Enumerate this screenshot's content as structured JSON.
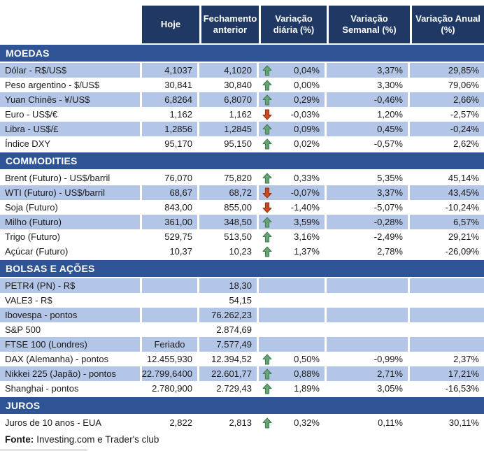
{
  "chart_data": {
    "type": "table",
    "columns": [
      "Hoje",
      "Fechamento anterior",
      "Variação diária (%)",
      "Variação Semanal (%)",
      "Variação Anual (%)"
    ],
    "sections": [
      {
        "title": "MOEDAS",
        "rows": [
          {
            "label": "Dólar - R$/US$",
            "hoje": "4,1037",
            "fechamento": "4,1020",
            "arrow": "up",
            "diaria": "0,04%",
            "semanal": "3,37%",
            "anual": "29,85%",
            "shaded": true
          },
          {
            "label": "Peso argentino - $/US$",
            "hoje": "30,841",
            "fechamento": "30,840",
            "arrow": "up",
            "diaria": "0,00%",
            "semanal": "3,30%",
            "anual": "79,06%",
            "shaded": false
          },
          {
            "label": "Yuan Chinês - ¥/US$",
            "hoje": "6,8264",
            "fechamento": "6,8070",
            "arrow": "up",
            "diaria": "0,29%",
            "semanal": "-0,46%",
            "anual": "2,66%",
            "shaded": true
          },
          {
            "label": "Euro - US$/€",
            "hoje": "1,162",
            "fechamento": "1,162",
            "arrow": "down",
            "diaria": "-0,03%",
            "semanal": "1,20%",
            "anual": "-2,57%",
            "shaded": false
          },
          {
            "label": "Libra - US$/£",
            "hoje": "1,2856",
            "fechamento": "1,2845",
            "arrow": "up",
            "diaria": "0,09%",
            "semanal": "0,45%",
            "anual": "-0,24%",
            "shaded": true
          },
          {
            "label": "Índice DXY",
            "hoje": "95,170",
            "fechamento": "95,150",
            "arrow": "up",
            "diaria": "0,02%",
            "semanal": "-0,57%",
            "anual": "2,62%",
            "shaded": false
          }
        ]
      },
      {
        "title": "COMMODITIES",
        "rows": [
          {
            "label": "Brent (Futuro) - US$/barril",
            "hoje": "76,070",
            "fechamento": "75,820",
            "arrow": "up",
            "diaria": "0,33%",
            "semanal": "5,35%",
            "anual": "45,14%",
            "shaded": false
          },
          {
            "label": "WTI (Futuro) - US$/barril",
            "hoje": "68,67",
            "fechamento": "68,72",
            "arrow": "down",
            "diaria": "-0,07%",
            "semanal": "3,37%",
            "anual": "43,45%",
            "shaded": true
          },
          {
            "label": "Soja (Futuro)",
            "hoje": "843,00",
            "fechamento": "855,00",
            "arrow": "down",
            "diaria": "-1,40%",
            "semanal": "-5,07%",
            "anual": "-10,24%",
            "shaded": false
          },
          {
            "label": "Milho (Futuro)",
            "hoje": "361,00",
            "fechamento": "348,50",
            "arrow": "up",
            "diaria": "3,59%",
            "semanal": "-0,28%",
            "anual": "6,57%",
            "shaded": true
          },
          {
            "label": "Trigo (Futuro)",
            "hoje": "529,75",
            "fechamento": "513,50",
            "arrow": "up",
            "diaria": "3,16%",
            "semanal": "-2,49%",
            "anual": "29,21%",
            "shaded": false
          },
          {
            "label": "Açúcar (Futuro)",
            "hoje": "10,37",
            "fechamento": "10,23",
            "arrow": "up",
            "diaria": "1,37%",
            "semanal": "2,78%",
            "anual": "-26,09%",
            "shaded": false
          }
        ]
      },
      {
        "title": "BOLSAS E AÇÕES",
        "rows": [
          {
            "label": "PETR4 (PN) - R$",
            "hoje": "",
            "fechamento": "18,30",
            "arrow": null,
            "diaria": "",
            "semanal": "",
            "anual": "",
            "shaded": true
          },
          {
            "label": "VALE3 - R$",
            "hoje": "",
            "fechamento": "54,15",
            "arrow": null,
            "diaria": "",
            "semanal": "",
            "anual": "",
            "shaded": false
          },
          {
            "label": "Ibovespa - pontos",
            "hoje": "",
            "fechamento": "76.262,23",
            "arrow": null,
            "diaria": "",
            "semanal": "",
            "anual": "",
            "shaded": true
          },
          {
            "label": "S&P 500",
            "hoje": "",
            "fechamento": "2.874,69",
            "arrow": null,
            "diaria": "",
            "semanal": "",
            "anual": "",
            "shaded": false
          },
          {
            "label": "FTSE 100 (Londres)",
            "hoje": "Feriado",
            "hoje_center": true,
            "fechamento": "7.577,49",
            "arrow": null,
            "diaria": "",
            "semanal": "",
            "anual": "",
            "shaded": true
          },
          {
            "label": "DAX (Alemanha) - pontos",
            "hoje": "12.455,930",
            "fechamento": "12.394,52",
            "arrow": "up",
            "diaria": "0,50%",
            "semanal": "-0,99%",
            "anual": "2,37%",
            "shaded": false
          },
          {
            "label": "Nikkei 225 (Japão) - pontos",
            "hoje": "22.799,6400",
            "fechamento": "22.601,77",
            "arrow": "up",
            "diaria": "0,88%",
            "semanal": "2,71%",
            "anual": "17,21%",
            "shaded": true
          },
          {
            "label": "Shanghai - pontos",
            "hoje": "2.780,900",
            "fechamento": "2.729,43",
            "arrow": "up",
            "diaria": "1,89%",
            "semanal": "3,05%",
            "anual": "-16,53%",
            "shaded": false
          }
        ]
      },
      {
        "title": "JUROS",
        "rows": [
          {
            "label": "Juros de 10 anos - EUA",
            "hoje": "2,822",
            "fechamento": "2,813",
            "arrow": "up",
            "diaria": "0,32%",
            "semanal": "0,11%",
            "anual": "30,11%",
            "shaded": false
          }
        ]
      }
    ]
  },
  "footer": {
    "bold": "Fonte:",
    "text": "Investing.com e Trader's club"
  },
  "colors": {
    "header_bg": "#1F3864",
    "section_bg": "#2F5496",
    "row_shaded": "#B4C6E7",
    "arrow_up_fill": "#69A375",
    "arrow_up_border": "#3B7A4D",
    "arrow_down_fill": "#C94A22",
    "arrow_down_border": "#93300F"
  }
}
